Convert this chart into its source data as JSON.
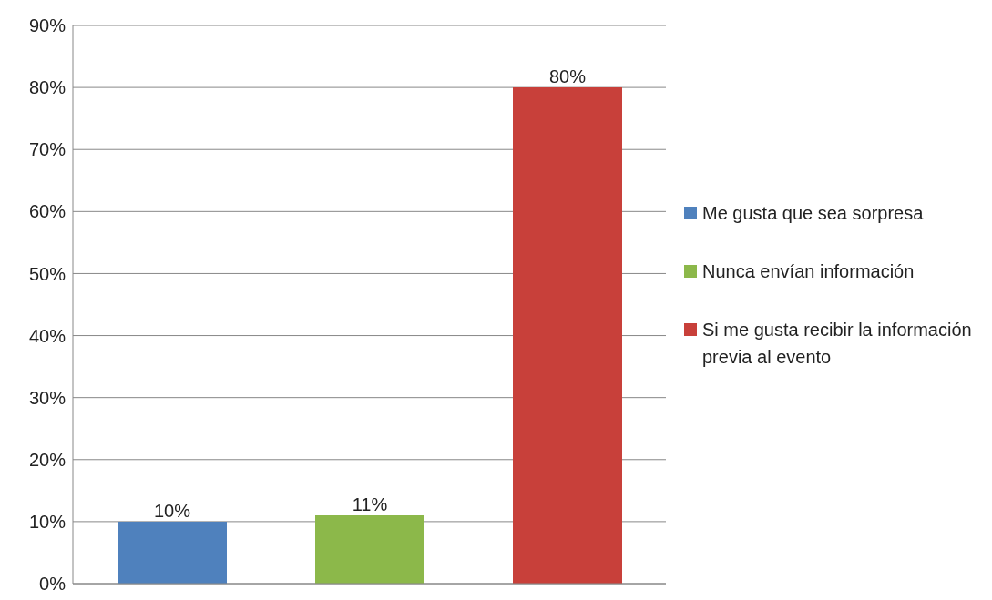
{
  "chart_data": {
    "type": "bar",
    "categories": [
      null,
      null,
      null
    ],
    "series": [
      {
        "name": "Me gusta que sea sorpresa",
        "color": "#4f81bd",
        "values": [
          10,
          null,
          null
        ],
        "value_labels": [
          "10%",
          null,
          null
        ]
      },
      {
        "name": "Nunca envían información",
        "color": "#8cb84a",
        "values": [
          null,
          11,
          null
        ],
        "value_labels": [
          null,
          "11%",
          null
        ]
      },
      {
        "name": "Si me gusta recibir la información previa al evento",
        "color": "#c8403a",
        "values": [
          null,
          null,
          80
        ],
        "value_labels": [
          null,
          null,
          "80%"
        ]
      }
    ],
    "ylim": [
      0,
      90
    ],
    "yticks": [
      {
        "value": 0,
        "label": "0%"
      },
      {
        "value": 10,
        "label": "10%"
      },
      {
        "value": 20,
        "label": "20%"
      },
      {
        "value": 30,
        "label": "30%"
      },
      {
        "value": 40,
        "label": "40%"
      },
      {
        "value": 50,
        "label": "50%"
      },
      {
        "value": 60,
        "label": "60%"
      },
      {
        "value": 70,
        "label": "70%"
      },
      {
        "value": 80,
        "label": "80%"
      },
      {
        "value": 90,
        "label": "90%"
      }
    ],
    "grid": "y",
    "legend": "right"
  }
}
